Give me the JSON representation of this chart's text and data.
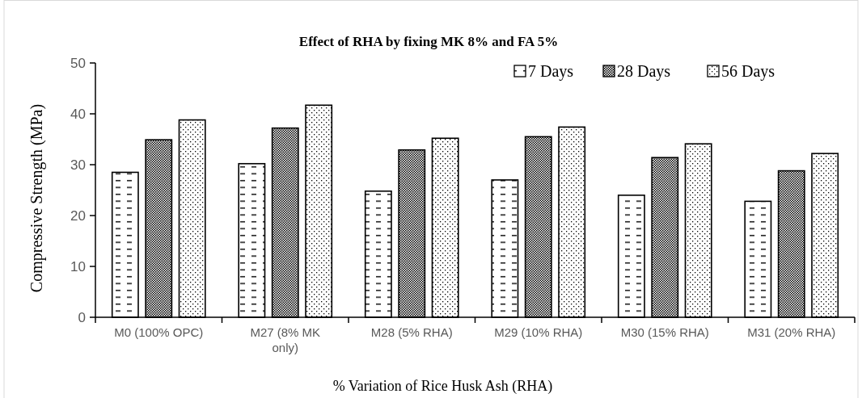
{
  "chart_data": {
    "type": "bar",
    "title": "Effect of RHA by fixing MK 8% and FA 5%",
    "xlabel": "% Variation of Rice Husk Ash (RHA)",
    "ylabel": "Compressive Strength (MPa)",
    "categories": [
      "M0 (100% OPC)",
      "M27 (8% MK only)",
      "M28 (5% RHA)",
      "M29 (10% RHA)",
      "M30 (15% RHA)",
      "M31 (20% RHA)"
    ],
    "series": [
      {
        "name": "7 Days",
        "color": "#000000",
        "values": [
          28.5,
          30.2,
          24.8,
          27.0,
          24.0,
          22.8
        ]
      },
      {
        "name": "28 Days",
        "color": "#000000",
        "values": [
          34.9,
          37.2,
          32.9,
          35.5,
          31.4,
          28.8
        ]
      },
      {
        "name": "56 Days",
        "color": "#000000",
        "values": [
          38.8,
          41.7,
          35.2,
          37.4,
          34.1,
          32.2
        ]
      }
    ],
    "ylim": [
      0,
      50
    ],
    "yticks": [
      0,
      10,
      20,
      30,
      40,
      50
    ],
    "grid": false,
    "legend": "top right"
  }
}
